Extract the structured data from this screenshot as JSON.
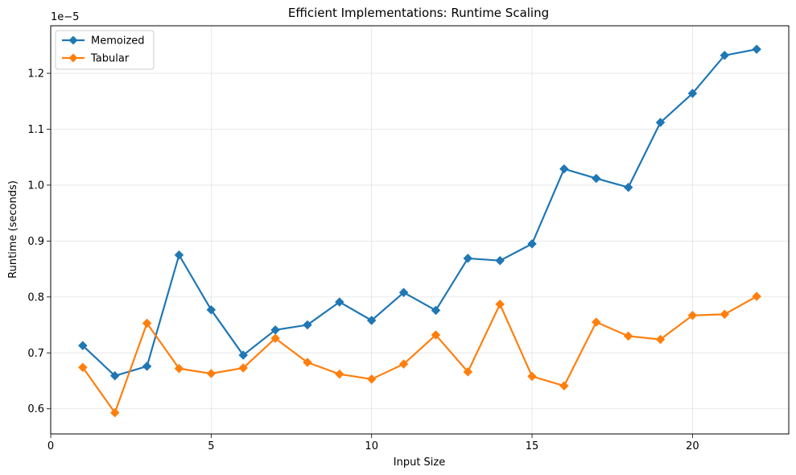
{
  "chart_data": {
    "type": "line",
    "title": "Efficient Implementations: Runtime Scaling",
    "xlabel": "Input Size",
    "ylabel": "Runtime (seconds)",
    "y_offset_label": "1e−5",
    "xlim": [
      0,
      23
    ],
    "ylim": [
      0.555,
      1.285
    ],
    "x_ticks": [
      0,
      5,
      10,
      15,
      20
    ],
    "y_ticks": [
      0.6,
      0.7,
      0.8,
      0.9,
      1.0,
      1.1,
      1.2
    ],
    "y_tick_labels": [
      "0.6",
      "0.7",
      "0.8",
      "0.9",
      "1.0",
      "1.1",
      "1.2"
    ],
    "grid": true,
    "legend_position": "top-left",
    "x": [
      1,
      2,
      3,
      4,
      5,
      6,
      7,
      8,
      9,
      10,
      11,
      12,
      13,
      14,
      15,
      16,
      17,
      18,
      19,
      20,
      21,
      22
    ],
    "series": [
      {
        "name": "Memoized",
        "color": "#1f77b4",
        "marker": "diamond",
        "values": [
          0.713,
          0.659,
          0.676,
          0.875,
          0.777,
          0.696,
          0.741,
          0.75,
          0.791,
          0.758,
          0.808,
          0.776,
          0.869,
          0.865,
          0.895,
          1.029,
          1.012,
          0.996,
          1.112,
          1.164,
          1.232,
          1.243
        ]
      },
      {
        "name": "Tabular",
        "color": "#ff7f0e",
        "marker": "diamond",
        "values": [
          0.674,
          0.593,
          0.753,
          0.672,
          0.663,
          0.673,
          0.726,
          0.683,
          0.662,
          0.653,
          0.68,
          0.732,
          0.666,
          0.787,
          0.658,
          0.641,
          0.755,
          0.73,
          0.724,
          0.767,
          0.769,
          0.801
        ]
      }
    ]
  }
}
